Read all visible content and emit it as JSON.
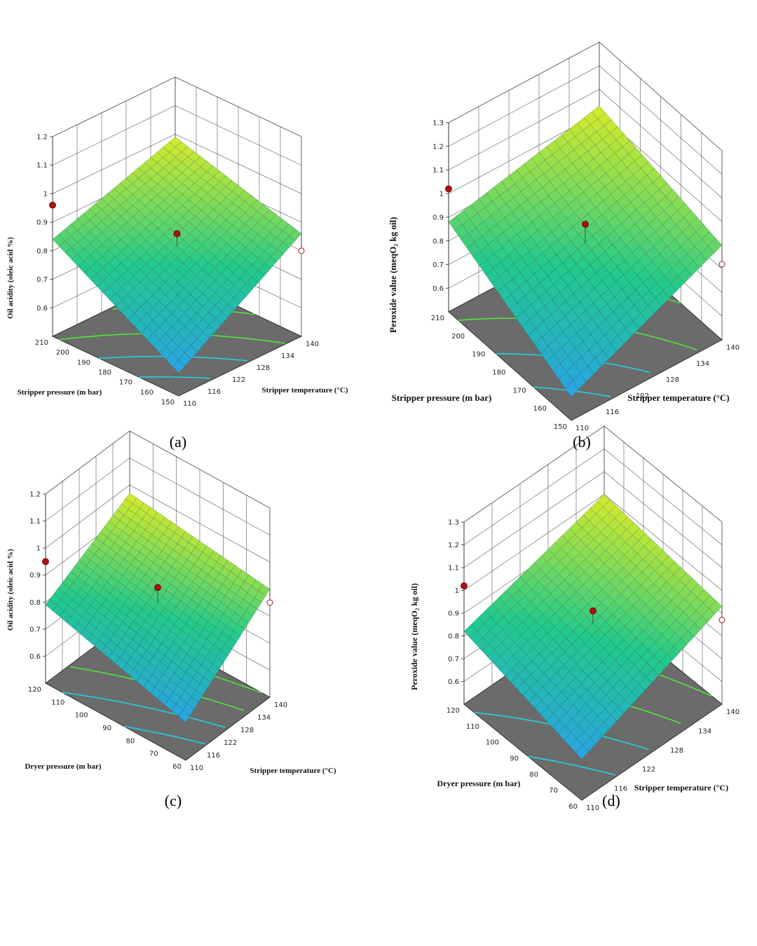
{
  "figure": {
    "panels": [
      {
        "id": "a",
        "label": "(a)"
      },
      {
        "id": "b",
        "label": "(b)"
      },
      {
        "id": "c",
        "label": "(c)"
      },
      {
        "id": "d",
        "label": "(d)"
      }
    ]
  },
  "chart_data": [
    {
      "type": "surface3d",
      "panel": "(a)",
      "zlabel": "Oil acidity (oleic acid %)",
      "xlabel": "Stripper pressure (m bar)",
      "ylabel": "Stripper temperature (°C)",
      "x_ticks": [
        "150",
        "160",
        "170",
        "180",
        "190",
        "200",
        "210"
      ],
      "y_ticks": [
        "110",
        "116",
        "122",
        "128",
        "134",
        "140"
      ],
      "z_ticks": [
        "0.6",
        "0.7",
        "0.8",
        "0.9",
        "1",
        "1.1",
        "1.2"
      ],
      "xlim": [
        150,
        210
      ],
      "ylim": [
        110,
        140
      ],
      "zlim": [
        0.5,
        1.2
      ],
      "surface_corners": {
        "x150_y110": 0.58,
        "x150_y140": 0.86,
        "x210_y110": 0.84,
        "x210_y140": 0.99
      },
      "points": [
        {
          "x": 210,
          "y": 110,
          "z": 0.96,
          "above": true
        },
        {
          "x": 150,
          "y": 110,
          "z": 0.74,
          "above": false
        },
        {
          "x": 180,
          "y": 125,
          "z": 0.86,
          "above": true
        },
        {
          "x": 150,
          "y": 140,
          "z": 0.8,
          "above": false
        }
      ]
    },
    {
      "type": "surface3d",
      "panel": "(b)",
      "zlabel": "Peroxide value (meqO₂ kg oil)",
      "xlabel": "Stripper pressure (m bar)",
      "ylabel": "Stripper temperature (°C)",
      "x_ticks": [
        "150",
        "160",
        "170",
        "180",
        "190",
        "200",
        "210"
      ],
      "y_ticks": [
        "110",
        "116",
        "122",
        "128",
        "134",
        "140"
      ],
      "z_ticks": [
        "0.6",
        "0.7",
        "0.8",
        "0.9",
        "1",
        "1.1",
        "1.2",
        "1.3"
      ],
      "xlim": [
        150,
        210
      ],
      "ylim": [
        110,
        140
      ],
      "zlim": [
        0.5,
        1.3
      ],
      "surface_corners": {
        "x150_y110": 0.6,
        "x150_y140": 0.9,
        "x210_y110": 0.88,
        "x210_y140": 1.03
      },
      "points": [
        {
          "x": 210,
          "y": 110,
          "z": 1.02,
          "above": true
        },
        {
          "x": 150,
          "y": 110,
          "z": 0.78,
          "above": false
        },
        {
          "x": 180,
          "y": 125,
          "z": 0.93,
          "above": true
        },
        {
          "x": 150,
          "y": 140,
          "z": 0.82,
          "above": false
        }
      ]
    },
    {
      "type": "surface3d",
      "panel": "(c)",
      "zlabel": "Oil acidity (oleic acid %)",
      "xlabel": "Dryer pressure (m bar)",
      "ylabel": "Stripper temperature (°C)",
      "x_ticks": [
        "60",
        "70",
        "80",
        "90",
        "100",
        "110",
        "120"
      ],
      "y_ticks": [
        "110",
        "116",
        "122",
        "128",
        "134",
        "140"
      ],
      "z_ticks": [
        "0.6",
        "0.7",
        "0.8",
        "0.9",
        "1",
        "1.1",
        "1.2"
      ],
      "xlim": [
        60,
        120
      ],
      "ylim": [
        110,
        140
      ],
      "zlim": [
        0.5,
        1.2
      ],
      "surface_corners": {
        "x60_y110": 0.64,
        "x60_y140": 0.9,
        "x120_y110": 0.79,
        "x120_y140": 0.97
      },
      "points": [
        {
          "x": 120,
          "y": 110,
          "z": 0.95,
          "above": true
        },
        {
          "x": 60,
          "y": 110,
          "z": 0.77,
          "above": false
        },
        {
          "x": 90,
          "y": 125,
          "z": 0.88,
          "above": true
        },
        {
          "x": 60,
          "y": 140,
          "z": 0.85,
          "above": false
        }
      ]
    },
    {
      "type": "surface3d",
      "panel": "(d)",
      "zlabel": "Peroxide value (meqO₂ kg oil)",
      "xlabel": "Dryer pressure (m bar)",
      "ylabel": "Stripper temperature (°C)",
      "x_ticks": [
        "60",
        "70",
        "80",
        "90",
        "100",
        "110",
        "120"
      ],
      "y_ticks": [
        "110",
        "116",
        "122",
        "128",
        "134",
        "140"
      ],
      "z_ticks": [
        "0.6",
        "0.7",
        "0.8",
        "0.9",
        "1",
        "1.1",
        "1.2",
        "1.3"
      ],
      "xlim": [
        60,
        120
      ],
      "ylim": [
        110,
        140
      ],
      "zlim": [
        0.5,
        1.3
      ],
      "surface_corners": {
        "x60_y110": 0.68,
        "x60_y140": 0.93,
        "x120_y110": 0.82,
        "x120_y140": 1.0
      },
      "points": [
        {
          "x": 120,
          "y": 110,
          "z": 1.02,
          "above": true
        },
        {
          "x": 60,
          "y": 110,
          "z": 0.78,
          "above": false
        },
        {
          "x": 90,
          "y": 125,
          "z": 0.91,
          "above": true
        },
        {
          "x": 60,
          "y": 140,
          "z": 0.87,
          "above": false
        }
      ]
    }
  ],
  "colors": {
    "surface_low": "#29a3e6",
    "surface_mid": "#22c98c",
    "surface_high": "#d6ea2a",
    "floor": "#6b6b6b",
    "contour_low": "#25d0e0",
    "contour_high": "#50e43a",
    "point": "#b01010",
    "grid": "#555555"
  }
}
